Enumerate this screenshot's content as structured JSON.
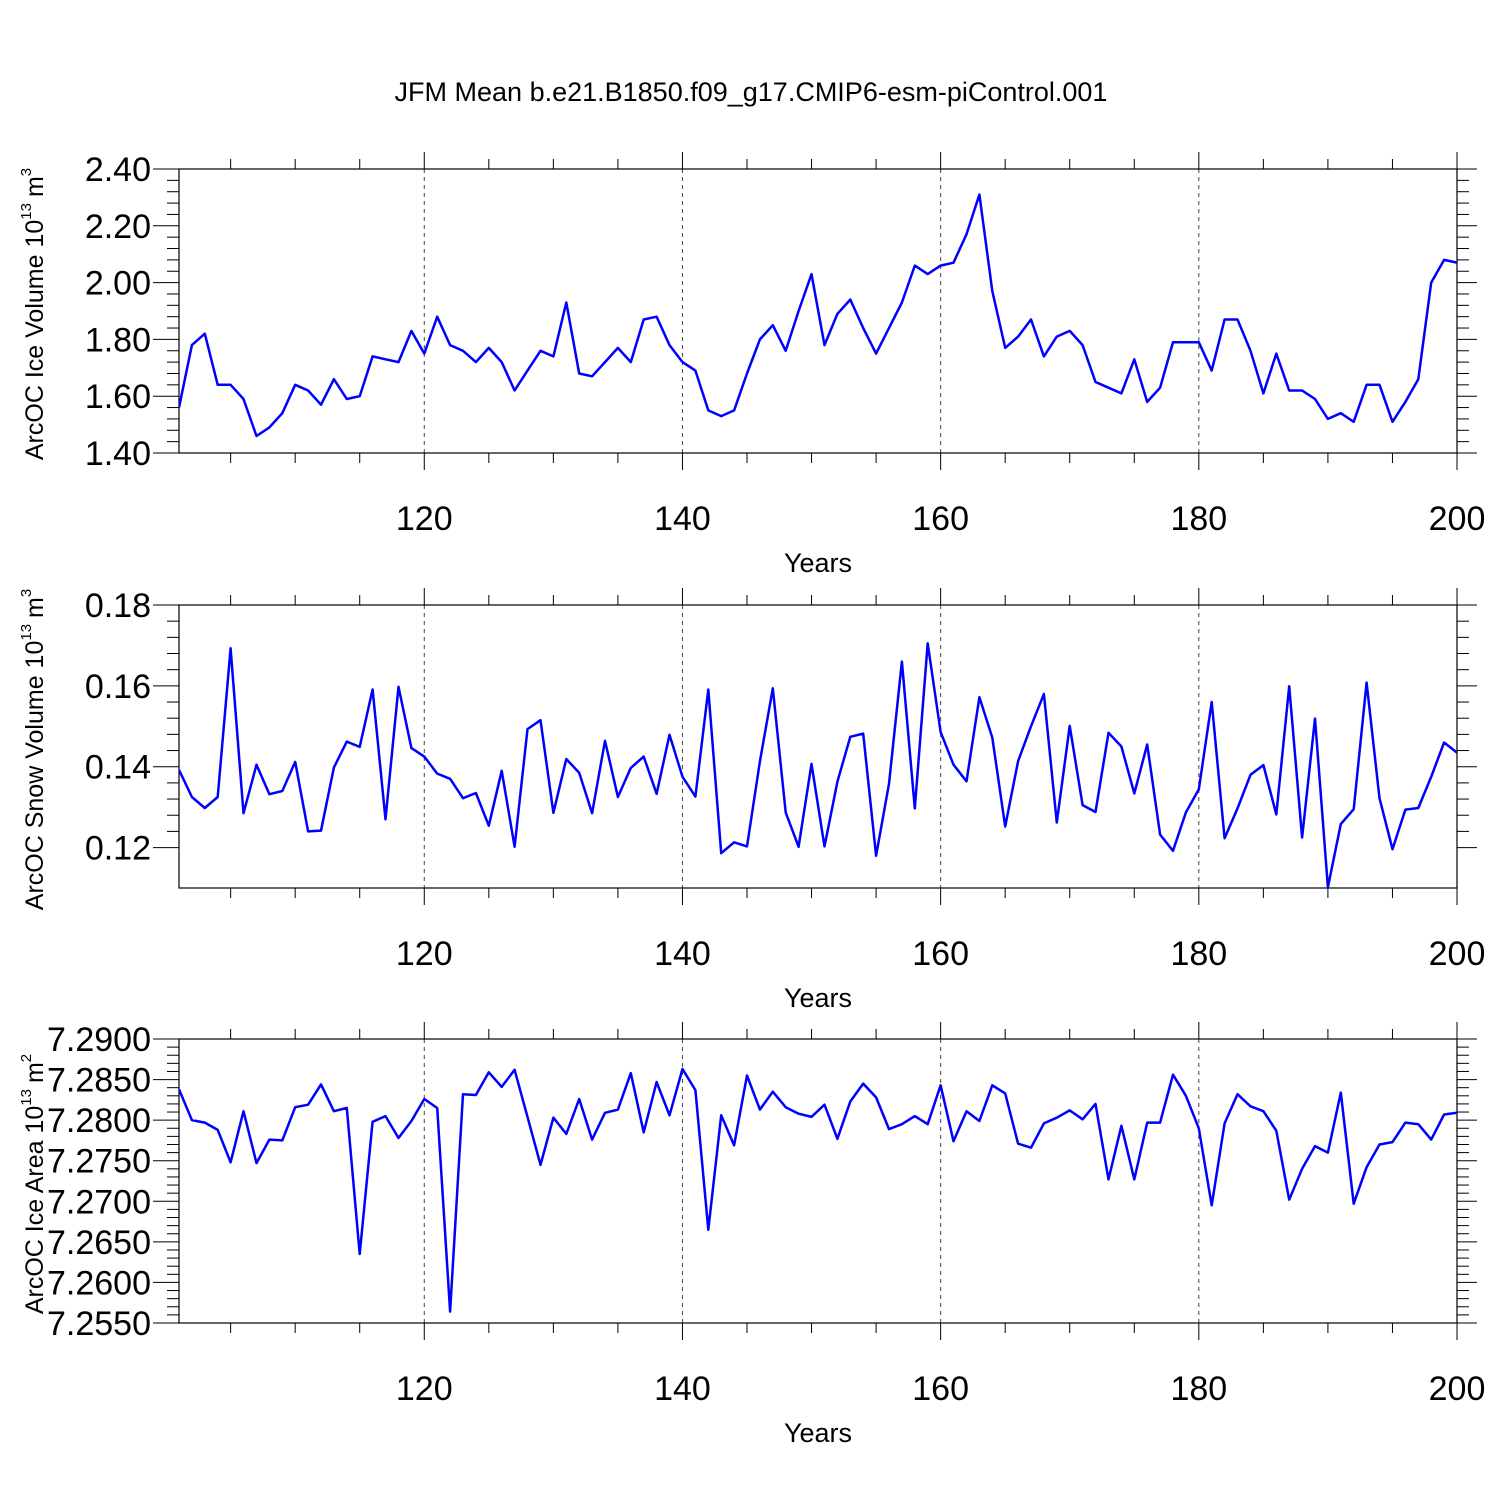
{
  "chart_data": [
    {
      "type": "line",
      "title": "JFM Mean b.e21.B1850.f09_g17.CMIP6-esm-piControl.001",
      "xlabel": "Years",
      "ylabel": "ArcOC Ice Volume 10",
      "ylabel_exp": "13",
      "ylabel_unit": "m",
      "ylabel_unit_exp": "3",
      "xlim": [
        101,
        200
      ],
      "ylim": [
        1.4,
        2.4
      ],
      "xticks": [
        120,
        140,
        160,
        180,
        200
      ],
      "yticks": [
        1.4,
        1.6,
        1.8,
        2.0,
        2.2,
        2.4
      ],
      "ytick_labels": [
        "1.40",
        "1.60",
        "1.80",
        "2.00",
        "2.20",
        "2.40"
      ],
      "grid": "vertical dashed",
      "series": [
        {
          "name": "Ice Volume",
          "color": "#0000ff",
          "x_start": 101,
          "values": [
            1.56,
            1.78,
            1.82,
            1.64,
            1.64,
            1.59,
            1.46,
            1.49,
            1.54,
            1.64,
            1.62,
            1.57,
            1.66,
            1.59,
            1.6,
            1.74,
            1.73,
            1.72,
            1.83,
            1.75,
            1.88,
            1.78,
            1.76,
            1.72,
            1.77,
            1.72,
            1.62,
            1.69,
            1.76,
            1.74,
            1.93,
            1.68,
            1.67,
            1.72,
            1.77,
            1.72,
            1.87,
            1.88,
            1.78,
            1.72,
            1.69,
            1.55,
            1.53,
            1.55,
            1.68,
            1.8,
            1.85,
            1.76,
            1.9,
            2.03,
            1.78,
            1.89,
            1.94,
            1.84,
            1.75,
            1.84,
            1.93,
            2.06,
            2.03,
            2.06,
            2.07,
            2.17,
            2.31,
            1.97,
            1.77,
            1.81,
            1.87,
            1.74,
            1.81,
            1.83,
            1.78,
            1.65,
            1.63,
            1.61,
            1.73,
            1.58,
            1.63,
            1.79,
            1.79,
            1.79,
            1.69,
            1.87,
            1.87,
            1.76,
            1.61,
            1.75,
            1.62,
            1.62,
            1.59,
            1.52,
            1.54,
            1.51,
            1.64,
            1.64,
            1.51,
            1.58,
            1.66,
            2.0,
            2.08,
            2.07
          ]
        }
      ]
    },
    {
      "type": "line",
      "title": "",
      "xlabel": "Years",
      "ylabel": "ArcOC Snow Volume 10",
      "ylabel_exp": "13",
      "ylabel_unit": "m",
      "ylabel_unit_exp": "3",
      "xlim": [
        101,
        200
      ],
      "ylim": [
        0.11,
        0.18
      ],
      "xticks": [
        120,
        140,
        160,
        180,
        200
      ],
      "yticks": [
        0.12,
        0.14,
        0.16,
        0.18
      ],
      "ytick_labels": [
        "0.12",
        "0.14",
        "0.16",
        "0.18"
      ],
      "grid": "vertical dashed",
      "series": [
        {
          "name": "Snow Volume",
          "color": "#0000ff",
          "x_start": 101,
          "values": [
            0.1392,
            0.1325,
            0.1298,
            0.1325,
            0.1693,
            0.1285,
            0.1405,
            0.1332,
            0.134,
            0.1412,
            0.124,
            0.1242,
            0.1398,
            0.1462,
            0.1449,
            0.1591,
            0.127,
            0.1598,
            0.1446,
            0.1425,
            0.1383,
            0.137,
            0.1322,
            0.1335,
            0.1254,
            0.139,
            0.1202,
            0.1493,
            0.1515,
            0.1286,
            0.1419,
            0.1385,
            0.1285,
            0.1464,
            0.1325,
            0.1397,
            0.1425,
            0.1333,
            0.1479,
            0.1375,
            0.1326,
            0.1591,
            0.1186,
            0.1213,
            0.1203,
            0.1413,
            0.1594,
            0.1287,
            0.1202,
            0.1407,
            0.1203,
            0.1363,
            0.1474,
            0.1482,
            0.118,
            0.1358,
            0.166,
            0.1297,
            0.1705,
            0.1486,
            0.1405,
            0.1364,
            0.1572,
            0.1472,
            0.1252,
            0.1414,
            0.15,
            0.158,
            0.1262,
            0.1501,
            0.1305,
            0.1288,
            0.1484,
            0.145,
            0.1334,
            0.1455,
            0.1232,
            0.1192,
            0.1287,
            0.1344,
            0.156,
            0.1223,
            0.1297,
            0.138,
            0.1404,
            0.1282,
            0.1599,
            0.1225,
            0.1519,
            0.1102,
            0.1258,
            0.1295,
            0.1608,
            0.1322,
            0.1196,
            0.1294,
            0.1298,
            0.1375,
            0.146,
            0.1435
          ]
        }
      ]
    },
    {
      "type": "line",
      "title": "",
      "xlabel": "Years",
      "ylabel": "ArcOC Ice Area 10",
      "ylabel_exp": "13",
      "ylabel_unit": "m",
      "ylabel_unit_exp": "2",
      "xlim": [
        101,
        200
      ],
      "ylim": [
        7.255,
        7.29
      ],
      "xticks": [
        120,
        140,
        160,
        180,
        200
      ],
      "yticks": [
        7.255,
        7.26,
        7.265,
        7.27,
        7.275,
        7.28,
        7.285,
        7.29
      ],
      "ytick_labels": [
        "7.2550",
        "7.2600",
        "7.2650",
        "7.2700",
        "7.2750",
        "7.2800",
        "7.2850",
        "7.2900"
      ],
      "grid": "vertical dashed",
      "series": [
        {
          "name": "Ice Area",
          "color": "#0000ff",
          "x_start": 101,
          "values": [
            7.2838,
            7.28,
            7.2797,
            7.2788,
            7.2748,
            7.2811,
            7.2747,
            7.2776,
            7.2775,
            7.2816,
            7.2819,
            7.2844,
            7.2811,
            7.2815,
            7.2635,
            7.2798,
            7.2805,
            7.2778,
            7.2799,
            7.2826,
            7.2815,
            7.2564,
            7.2832,
            7.2831,
            7.2859,
            7.2841,
            7.2862,
            7.2804,
            7.2745,
            7.2803,
            7.2783,
            7.2826,
            7.2776,
            7.2809,
            7.2813,
            7.2858,
            7.2785,
            7.2847,
            7.2806,
            7.2863,
            7.2837,
            7.2665,
            7.2806,
            7.2769,
            7.2855,
            7.2813,
            7.2835,
            7.2816,
            7.2808,
            7.2804,
            7.2819,
            7.2777,
            7.2823,
            7.2845,
            7.2828,
            7.2789,
            7.2795,
            7.2805,
            7.2795,
            7.2843,
            7.2774,
            7.2811,
            7.2799,
            7.2843,
            7.2833,
            7.2771,
            7.2766,
            7.2796,
            7.2803,
            7.2812,
            7.2801,
            7.282,
            7.2727,
            7.2793,
            7.2727,
            7.2797,
            7.2797,
            7.2856,
            7.283,
            7.279,
            7.2695,
            7.2796,
            7.2832,
            7.2817,
            7.2811,
            7.2787,
            7.2702,
            7.274,
            7.2768,
            7.276,
            7.2834,
            7.2697,
            7.2742,
            7.277,
            7.2773,
            7.2797,
            7.2795,
            7.2776,
            7.2807,
            7.2809
          ]
        }
      ]
    }
  ]
}
